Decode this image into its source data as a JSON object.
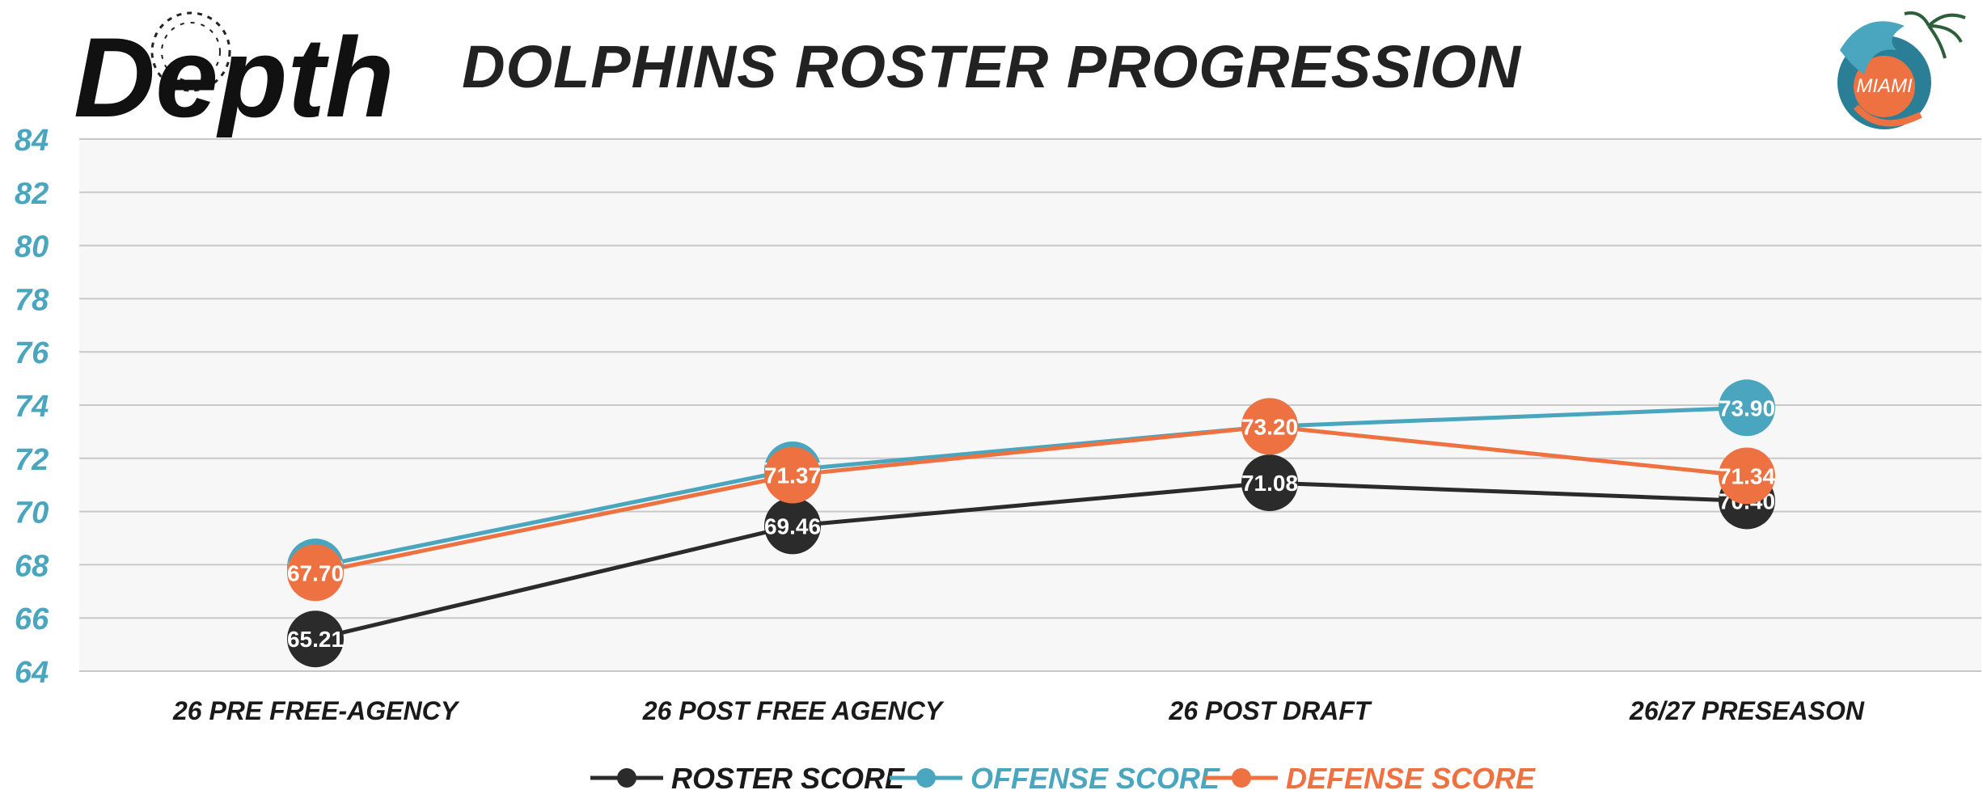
{
  "logo_left_text": "Depth",
  "logo_right_text": "MIAMI",
  "chart_data": {
    "type": "line",
    "title": "DOLPHINS ROSTER PROGRESSION",
    "xlabel": "",
    "ylabel": "",
    "categories": [
      "26 PRE FREE-AGENCY",
      "26 POST FREE AGENCY",
      "26 POST DRAFT",
      "26/27 PRESEASON"
    ],
    "ylim": [
      64,
      84
    ],
    "yticks": [
      64,
      66,
      68,
      70,
      72,
      74,
      76,
      78,
      80,
      82,
      84
    ],
    "grid": true,
    "legend_position": "bottom",
    "series": [
      {
        "name": "ROSTER SCORE",
        "color": "#2b2b2b",
        "values": [
          65.21,
          69.46,
          71.08,
          70.4
        ],
        "labels": [
          "65.21",
          "69.46",
          "71.08",
          "70.40"
        ]
      },
      {
        "name": "OFFENSE SCORE",
        "color": "#4aa5bf",
        "values": [
          67.92,
          71.57,
          73.2,
          73.9
        ],
        "labels": [
          "67.92",
          "71.57",
          "73.20",
          "73.90"
        ]
      },
      {
        "name": "DEFENSE SCORE",
        "color": "#ee7241",
        "values": [
          67.7,
          71.37,
          73.2,
          71.34
        ],
        "labels": [
          "67.70",
          "71.37",
          "73.20",
          "71.34"
        ]
      }
    ]
  }
}
